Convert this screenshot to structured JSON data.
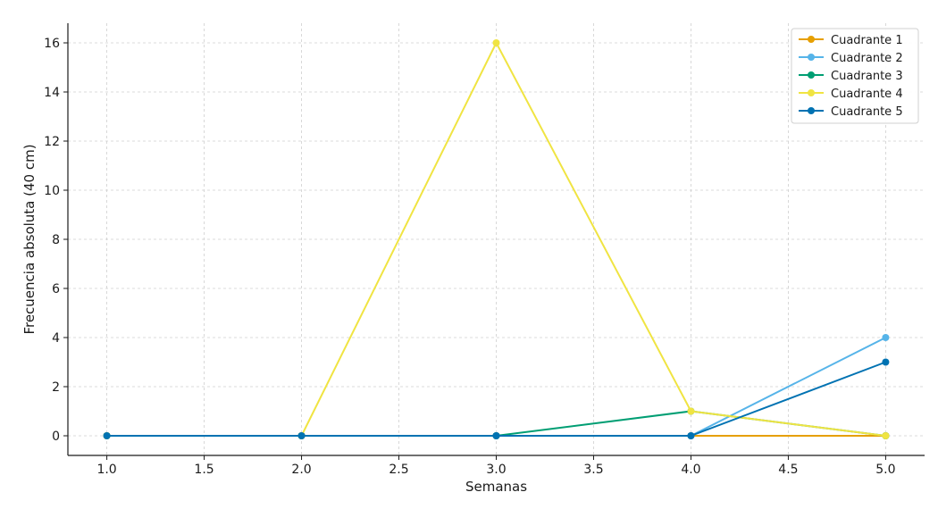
{
  "chart_data": {
    "type": "line",
    "title": "",
    "xlabel": "Semanas",
    "ylabel": "Frecuencia absoluta (40 cm)",
    "x": [
      1.0,
      2.0,
      3.0,
      4.0,
      5.0
    ],
    "xlim": [
      0.8,
      5.2
    ],
    "ylim": [
      -0.8,
      16.8
    ],
    "xticks": [
      1.0,
      1.5,
      2.0,
      2.5,
      3.0,
      3.5,
      4.0,
      4.5,
      5.0
    ],
    "xtick_labels": [
      "1.0",
      "1.5",
      "2.0",
      "2.5",
      "3.0",
      "3.5",
      "4.0",
      "4.5",
      "5.0"
    ],
    "yticks": [
      0,
      2,
      4,
      6,
      8,
      10,
      12,
      14,
      16
    ],
    "ytick_labels": [
      "0",
      "2",
      "4",
      "6",
      "8",
      "10",
      "12",
      "14",
      "16"
    ],
    "grid": true,
    "legend_position": "top-right",
    "series": [
      {
        "name": "Cuadrante 1",
        "color": "#E69F00",
        "values": [
          0,
          0,
          0,
          0,
          0
        ]
      },
      {
        "name": "Cuadrante 2",
        "color": "#56B4E9",
        "values": [
          0,
          0,
          0,
          0,
          4
        ]
      },
      {
        "name": "Cuadrante 3",
        "color": "#009E73",
        "values": [
          0,
          0,
          0,
          1,
          0
        ]
      },
      {
        "name": "Cuadrante 4",
        "color": "#F0E442",
        "values": [
          0,
          0,
          16,
          1,
          0
        ]
      },
      {
        "name": "Cuadrante 5",
        "color": "#0072B2",
        "values": [
          0,
          0,
          0,
          0,
          3
        ]
      }
    ]
  }
}
